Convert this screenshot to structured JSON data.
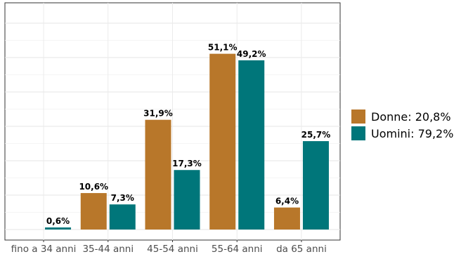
{
  "chart_data": {
    "type": "bar",
    "categories": [
      "fino a 34 anni",
      "35-44 anni",
      "45-54 anni",
      "55-64 anni",
      "da 65 anni"
    ],
    "series": [
      {
        "name": "Donne: 20,8%",
        "color": "#b8772a",
        "values": [
          0.0,
          10.6,
          31.9,
          51.1,
          6.4
        ],
        "labels": [
          "",
          "10,6%",
          "31,9%",
          "51,1%",
          "6,4%"
        ]
      },
      {
        "name": "Uomini:  79,2%",
        "color": "#00767a",
        "values": [
          0.6,
          7.3,
          17.3,
          49.2,
          25.7
        ],
        "labels": [
          "0,6%",
          "7,3%",
          "17,3%",
          "49,2%",
          "25,7%"
        ]
      }
    ],
    "ylim": [
      0,
      60
    ],
    "grid": true,
    "legend_position": "right"
  }
}
